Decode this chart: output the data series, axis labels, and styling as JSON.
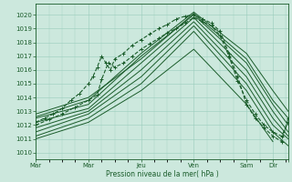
{
  "bg_color": "#cce8dd",
  "grid_color": "#99ccbb",
  "line_color": "#1a5c2a",
  "xlabel": "Pression niveau de la mer( hPa )",
  "ylabel_ticks": [
    1010,
    1011,
    1012,
    1013,
    1014,
    1015,
    1016,
    1017,
    1018,
    1019,
    1020
  ],
  "ylim": [
    1009.5,
    1020.8
  ],
  "xlim": [
    0,
    115
  ],
  "day_tick_positions": [
    0,
    24,
    48,
    72,
    96,
    108,
    115
  ],
  "day_tick_labels": [
    "Mar",
    "Mar",
    "Jeu",
    "Ven",
    "Sam",
    "Dir",
    ""
  ],
  "minor_x_step": 6,
  "series": [
    {
      "x": [
        0,
        4,
        8,
        12,
        16,
        20,
        24,
        26,
        28,
        30,
        32,
        34,
        36,
        40,
        44,
        48,
        52,
        56,
        60,
        64,
        68,
        72,
        76,
        80,
        84,
        88,
        92,
        96,
        100,
        104,
        108,
        112,
        115
      ],
      "y": [
        1012.2,
        1012.5,
        1012.8,
        1013.2,
        1013.8,
        1014.3,
        1015.0,
        1015.5,
        1016.2,
        1017.0,
        1016.5,
        1016.0,
        1016.8,
        1017.2,
        1017.8,
        1018.2,
        1018.6,
        1019.0,
        1019.3,
        1019.7,
        1019.9,
        1020.0,
        1019.7,
        1019.4,
        1018.8,
        1017.2,
        1015.5,
        1013.5,
        1012.5,
        1011.8,
        1011.2,
        1010.8,
        1012.5
      ],
      "style": "dashed_marker",
      "lw": 0.8
    },
    {
      "x": [
        0,
        6,
        12,
        18,
        24,
        28,
        30,
        33,
        36,
        40,
        44,
        48,
        52,
        56,
        60,
        64,
        68,
        72,
        76,
        80,
        84,
        88,
        92,
        96,
        100,
        104,
        108,
        112,
        115
      ],
      "y": [
        1012.0,
        1012.4,
        1012.8,
        1013.3,
        1013.8,
        1014.2,
        1015.3,
        1016.5,
        1016.2,
        1016.5,
        1017.0,
        1017.5,
        1017.9,
        1018.3,
        1018.7,
        1019.0,
        1019.4,
        1019.8,
        1019.5,
        1019.2,
        1018.5,
        1017.0,
        1015.2,
        1013.8,
        1012.8,
        1012.0,
        1011.5,
        1011.2,
        1012.2
      ],
      "style": "dashed_marker",
      "lw": 0.8
    },
    {
      "x": [
        0,
        24,
        48,
        72,
        96,
        108,
        115
      ],
      "y": [
        1012.5,
        1013.5,
        1017.0,
        1020.0,
        1016.5,
        1013.5,
        1012.0
      ],
      "style": "solid",
      "lw": 0.7
    },
    {
      "x": [
        0,
        24,
        48,
        72,
        96,
        108,
        115
      ],
      "y": [
        1012.2,
        1013.2,
        1016.5,
        1019.8,
        1016.0,
        1013.0,
        1011.5
      ],
      "style": "solid",
      "lw": 0.7
    },
    {
      "x": [
        0,
        24,
        48,
        72,
        96,
        108,
        115
      ],
      "y": [
        1011.8,
        1013.0,
        1016.0,
        1019.5,
        1015.5,
        1012.5,
        1011.2
      ],
      "style": "solid",
      "lw": 0.7
    },
    {
      "x": [
        0,
        24,
        48,
        72,
        96,
        108,
        115
      ],
      "y": [
        1011.5,
        1012.8,
        1015.5,
        1019.2,
        1015.0,
        1012.0,
        1011.0
      ],
      "style": "solid",
      "lw": 0.7
    },
    {
      "x": [
        0,
        24,
        48,
        72,
        96,
        108,
        115
      ],
      "y": [
        1011.2,
        1012.5,
        1015.0,
        1018.8,
        1014.5,
        1011.5,
        1010.5
      ],
      "style": "solid",
      "lw": 0.7
    },
    {
      "x": [
        0,
        24,
        48,
        72,
        96,
        108
      ],
      "y": [
        1011.0,
        1012.2,
        1014.5,
        1017.5,
        1013.5,
        1010.8
      ],
      "style": "solid",
      "lw": 0.7
    },
    {
      "x": [
        0,
        24,
        48,
        72,
        96,
        108,
        115
      ],
      "y": [
        1012.8,
        1014.0,
        1016.8,
        1020.1,
        1016.8,
        1013.8,
        1012.5
      ],
      "style": "solid",
      "lw": 0.7
    },
    {
      "x": [
        0,
        24,
        48,
        72,
        96,
        108,
        115
      ],
      "y": [
        1012.6,
        1013.8,
        1017.2,
        1020.2,
        1017.2,
        1014.5,
        1013.0
      ],
      "style": "solid",
      "lw": 0.7
    }
  ]
}
